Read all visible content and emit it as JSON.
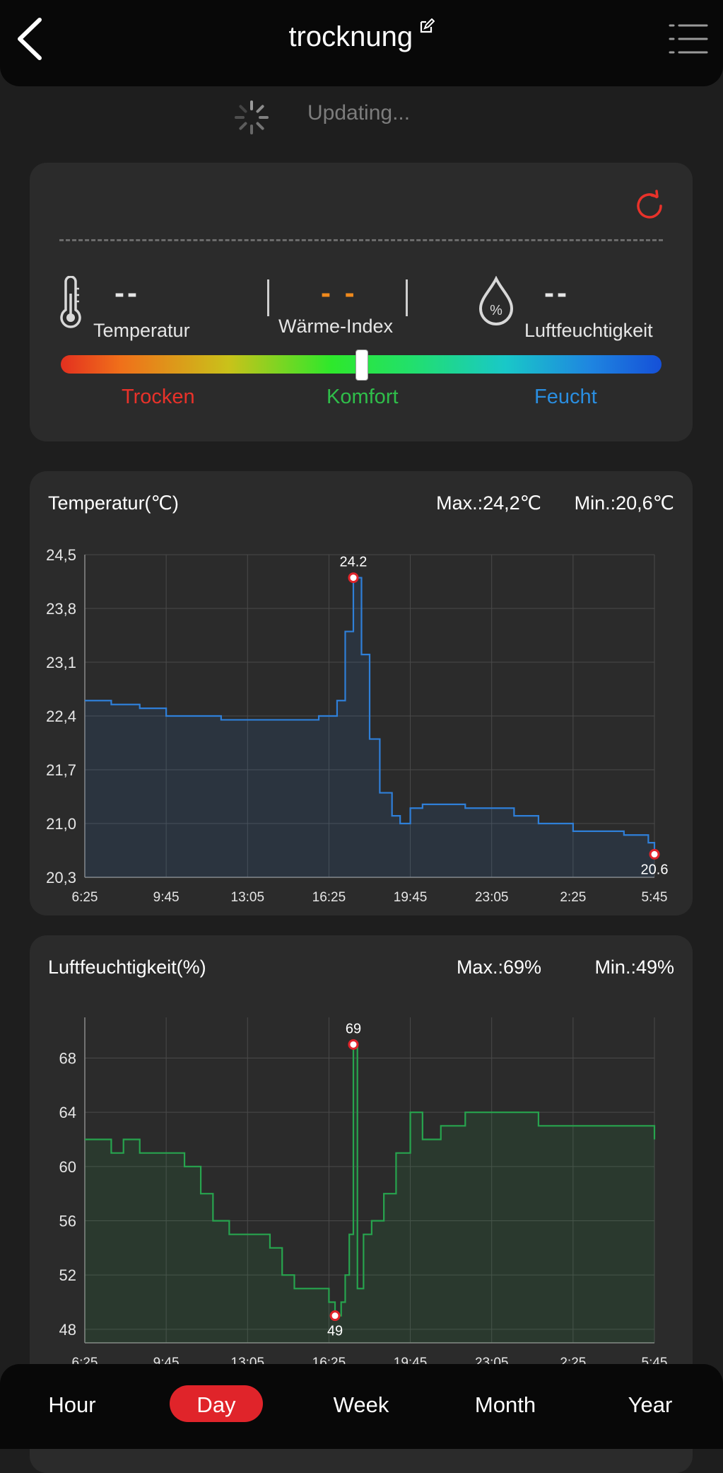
{
  "header": {
    "title": "trocknung"
  },
  "status": {
    "updating_text": "Updating..."
  },
  "comfort": {
    "temperature_value": "--",
    "temperature_label": "Temperatur",
    "heat_index_value": "- -",
    "heat_index_label": "Wärme-Index",
    "humidity_value": "--",
    "humidity_label": "Luftfeuchtigkeit",
    "humidity_icon_symbol": "%",
    "scale": {
      "dry": "Trocken",
      "comfort": "Komfort",
      "wet": "Feucht"
    },
    "slider_level": 0.5,
    "colors": {
      "dry": "#e8322a",
      "comfort": "#2fbe4a",
      "wet": "#2a8ee0",
      "heat_index": "#f08a1c"
    }
  },
  "temperature_chart": {
    "title": "Temperatur(℃)",
    "max_label": "Max.:24,2℃",
    "min_label": "Min.:20,6℃"
  },
  "humidity_chart": {
    "title": "Luftfeuchtigkeit(%)",
    "max_label": "Max.:69%",
    "min_label": "Min.:49%"
  },
  "chart_data": [
    {
      "type": "line",
      "title": "Temperatur(℃)",
      "x": [
        "6:25",
        "7:30",
        "8:40",
        "9:45",
        "11:00",
        "12:00",
        "13:05",
        "14:30",
        "15:30",
        "16:00",
        "16:25",
        "16:45",
        "17:05",
        "17:25",
        "17:45",
        "18:05",
        "18:30",
        "19:00",
        "19:20",
        "19:45",
        "20:15",
        "21:00",
        "22:00",
        "23:05",
        "24:00",
        "1:00",
        "2:25",
        "3:30",
        "4:30",
        "5:30",
        "5:45"
      ],
      "y": [
        22.6,
        22.55,
        22.5,
        22.4,
        22.4,
        22.35,
        22.35,
        22.35,
        22.35,
        22.4,
        22.4,
        22.6,
        23.5,
        24.2,
        23.2,
        22.1,
        21.4,
        21.1,
        21.0,
        21.2,
        21.25,
        21.25,
        21.2,
        21.2,
        21.1,
        21.0,
        20.9,
        20.9,
        20.85,
        20.75,
        20.6
      ],
      "yticks": [
        "24,5",
        "23,8",
        "23,1",
        "22,4",
        "21,7",
        "21,0",
        "20,3"
      ],
      "xticks": [
        "6:25",
        "9:45",
        "13:05",
        "16:25",
        "19:45",
        "23:05",
        "2:25",
        "5:45"
      ],
      "ylim": [
        20.3,
        24.5
      ],
      "annotations": [
        "24.2",
        "20.6"
      ],
      "color": "#2f7fd8",
      "grid": true
    },
    {
      "type": "line",
      "title": "Luftfeuchtigkeit(%)",
      "x": [
        "6:25",
        "7:30",
        "8:00",
        "8:40",
        "9:45",
        "10:30",
        "11:10",
        "11:40",
        "12:20",
        "13:05",
        "14:00",
        "14:30",
        "15:00",
        "15:30",
        "16:00",
        "16:25",
        "16:40",
        "16:55",
        "17:05",
        "17:15",
        "17:25",
        "17:35",
        "17:50",
        "18:10",
        "18:40",
        "19:10",
        "19:45",
        "20:15",
        "21:00",
        "22:00",
        "23:05",
        "24:00",
        "1:00",
        "2:25",
        "3:30",
        "4:30",
        "5:45"
      ],
      "y": [
        62,
        61,
        62,
        61,
        61,
        60,
        58,
        56,
        55,
        55,
        54,
        52,
        51,
        51,
        51,
        50,
        49,
        50,
        52,
        55,
        69,
        51,
        55,
        56,
        58,
        61,
        64,
        62,
        63,
        64,
        64,
        64,
        63,
        63,
        63,
        63,
        62
      ],
      "yticks": [
        "68",
        "64",
        "60",
        "56",
        "52",
        "48"
      ],
      "xticks": [
        "6:25",
        "9:45",
        "13:05",
        "16:25",
        "19:45",
        "23:05",
        "2:25",
        "5:45"
      ],
      "ylim": [
        47,
        71
      ],
      "annotations": [
        "69",
        "49"
      ],
      "color": "#27a44e",
      "grid": true
    }
  ],
  "tabs": [
    {
      "label": "Hour",
      "active": false
    },
    {
      "label": "Day",
      "active": true
    },
    {
      "label": "Week",
      "active": false
    },
    {
      "label": "Month",
      "active": false
    },
    {
      "label": "Year",
      "active": false
    }
  ]
}
